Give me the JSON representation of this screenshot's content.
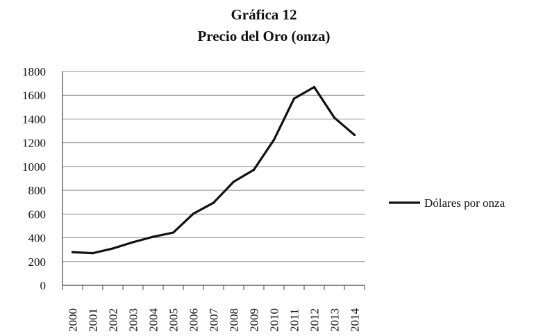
{
  "chart_data": {
    "type": "line",
    "title": "Gráfica 12",
    "subtitle": "Precio del Oro (onza)",
    "xlabel": "",
    "ylabel": "",
    "categories": [
      "2000",
      "2001",
      "2002",
      "2003",
      "2004",
      "2005",
      "2006",
      "2007",
      "2008",
      "2009",
      "2010",
      "2011",
      "2012",
      "2013",
      "2014"
    ],
    "series": [
      {
        "name": "Dólares por onza",
        "values": [
          279,
          271,
          310,
          363,
          409,
          444,
          603,
          695,
          872,
          972,
          1225,
          1572,
          1669,
          1411,
          1266
        ]
      }
    ],
    "ylim": [
      0,
      1800
    ],
    "yticks": [
      0,
      200,
      400,
      600,
      800,
      1000,
      1200,
      1400,
      1600,
      1800
    ],
    "grid": true,
    "legend": "right",
    "colors": {
      "line": "#111111",
      "grid": "#8c8c8c",
      "axis": "#444444"
    }
  }
}
